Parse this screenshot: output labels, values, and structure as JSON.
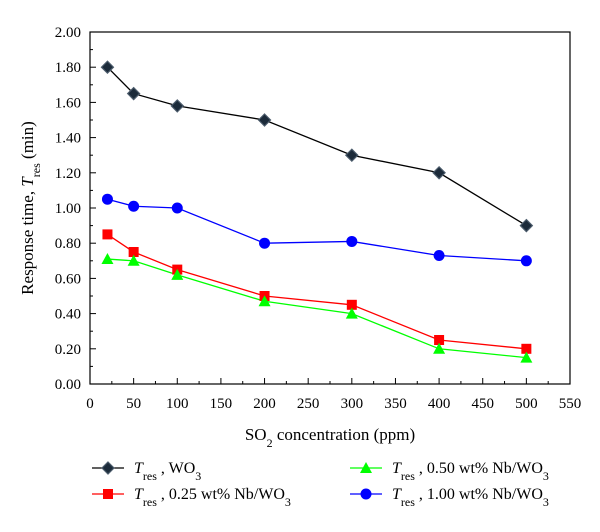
{
  "chart_data": {
    "type": "line",
    "xlabel": {
      "prefix": "SO",
      "subscript": "2",
      "suffix": " concentration (ppm)"
    },
    "ylabel": {
      "prefix": "Response time, ",
      "italic": "T",
      "subscript": "res",
      "suffix": " (min)"
    },
    "xlim": [
      0,
      550
    ],
    "ylim": [
      0,
      2.0
    ],
    "x_ticks": [
      "0",
      "50",
      "100",
      "150",
      "200",
      "250",
      "300",
      "350",
      "400",
      "450",
      "500",
      "550"
    ],
    "y_ticks": [
      "0.00",
      "0.20",
      "0.40",
      "0.60",
      "0.80",
      "1.00",
      "1.20",
      "1.40",
      "1.60",
      "1.80",
      "2.00"
    ],
    "x": [
      20,
      50,
      100,
      200,
      300,
      400,
      500
    ],
    "series": [
      {
        "name": "Tres, WO3",
        "color": "#000000",
        "marker": "diamond",
        "legend": {
          "italic": "T",
          "sub": "res",
          "text": " , WO",
          "sub2": "3"
        },
        "values": [
          1.8,
          1.65,
          1.58,
          1.5,
          1.3,
          1.2,
          0.9
        ]
      },
      {
        "name": "Tres, 0.25 wt% Nb/WO3",
        "color": "#ff0000",
        "marker": "square",
        "legend": {
          "italic": "T",
          "sub": "res",
          "text": " ,  0.25 wt% Nb/WO",
          "sub2": "3"
        },
        "values": [
          0.85,
          0.75,
          0.65,
          0.5,
          0.45,
          0.25,
          0.2
        ]
      },
      {
        "name": "Tres, 0.50 wt% Nb/WO3",
        "color": "#00ff00",
        "marker": "triangle",
        "legend": {
          "italic": "T",
          "sub": "res",
          "text": " ,  0.50 wt% Nb/WO",
          "sub2": "3"
        },
        "values": [
          0.71,
          0.7,
          0.62,
          0.47,
          0.4,
          0.2,
          0.15
        ]
      },
      {
        "name": "Tres, 1.00 wt% Nb/WO3",
        "color": "#0000ff",
        "marker": "circle",
        "legend": {
          "italic": "T",
          "sub": "res",
          "text": " ,  1.00 wt% Nb/WO",
          "sub2": "3"
        },
        "values": [
          1.05,
          1.01,
          1.0,
          0.8,
          0.81,
          0.73,
          0.7
        ]
      }
    ],
    "grid": false,
    "legend_position": "bottom"
  }
}
